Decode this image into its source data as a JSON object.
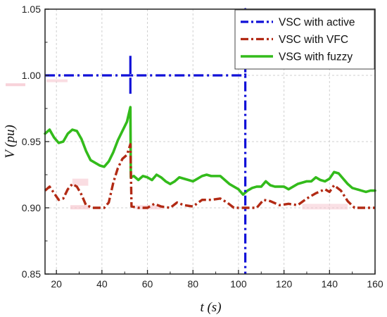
{
  "chart_data": {
    "type": "line",
    "xlabel": "t (s)",
    "ylabel": "V (pu)",
    "xlim": [
      15,
      160
    ],
    "ylim": [
      0.85,
      1.05
    ],
    "grid": true,
    "legend_position": "top-right",
    "x_ticks": [
      20,
      40,
      60,
      80,
      100,
      120,
      140,
      160
    ],
    "x_tick_labels": [
      "20",
      "40",
      "60",
      "80",
      "100",
      "120",
      "140",
      "160"
    ],
    "y_ticks": [
      0.85,
      0.9,
      0.95,
      1.0,
      1.05
    ],
    "y_tick_labels": [
      "0.85",
      "0.90",
      "0.95",
      "1.00",
      "1.05"
    ],
    "colors": {
      "blue": "#1010d8",
      "red": "#b22a14",
      "green": "#33bb1b",
      "pink_band": "#f6c7cf"
    },
    "series": [
      {
        "name": "VSC with active",
        "color": "#1010d8",
        "style": "dash-dot",
        "x": [
          15,
          52.5,
          52.5,
          52.5,
          52.5,
          103,
          103,
          103
        ],
        "y": [
          1.0,
          1.0,
          1.015,
          0.985,
          1.0,
          1.0,
          1.05,
          0.85
        ]
      },
      {
        "name": "VSC with VFC",
        "color": "#b22a14",
        "style": "dash-dot",
        "x": [
          15,
          17,
          19,
          21,
          23,
          25,
          27,
          29,
          31,
          33,
          36,
          39,
          41,
          43,
          45,
          47,
          49,
          51,
          52.5,
          53,
          56,
          60,
          63,
          66,
          70,
          73,
          76,
          80,
          84,
          88,
          92,
          95,
          98,
          101,
          104,
          108,
          111,
          114,
          118,
          122,
          126,
          130,
          134,
          138,
          140,
          142,
          145,
          148,
          151,
          155,
          160
        ],
        "y": [
          0.913,
          0.916,
          0.911,
          0.906,
          0.907,
          0.914,
          0.918,
          0.916,
          0.91,
          0.902,
          0.9,
          0.9,
          0.9,
          0.904,
          0.919,
          0.93,
          0.937,
          0.94,
          0.948,
          0.901,
          0.9,
          0.9,
          0.903,
          0.901,
          0.9,
          0.904,
          0.902,
          0.901,
          0.906,
          0.906,
          0.907,
          0.904,
          0.9,
          0.9,
          0.9,
          0.9,
          0.906,
          0.905,
          0.902,
          0.903,
          0.902,
          0.907,
          0.911,
          0.914,
          0.912,
          0.917,
          0.913,
          0.905,
          0.9,
          0.9,
          0.9
        ]
      },
      {
        "name": "VSG with fuzzy",
        "color": "#33bb1b",
        "style": "solid",
        "x": [
          15,
          17,
          19,
          21,
          23,
          25,
          27,
          29,
          31,
          33,
          35,
          37,
          39,
          41,
          43,
          45,
          47,
          49,
          51,
          52.5,
          52.7,
          54,
          56,
          58,
          60,
          62,
          64,
          66,
          68,
          70,
          72,
          74,
          76,
          78,
          80,
          82,
          84,
          86,
          88,
          90,
          92,
          94,
          96,
          98,
          100,
          102,
          104,
          106,
          108,
          110,
          112,
          114,
          116,
          118,
          120,
          122,
          124,
          126,
          128,
          130,
          132,
          134,
          136,
          138,
          140,
          142,
          144,
          146,
          148,
          150,
          152,
          154,
          156,
          158,
          160
        ],
        "y": [
          0.956,
          0.959,
          0.953,
          0.949,
          0.95,
          0.956,
          0.959,
          0.958,
          0.952,
          0.943,
          0.936,
          0.934,
          0.932,
          0.931,
          0.935,
          0.942,
          0.951,
          0.958,
          0.965,
          0.976,
          0.923,
          0.924,
          0.921,
          0.924,
          0.923,
          0.921,
          0.925,
          0.923,
          0.92,
          0.918,
          0.92,
          0.923,
          0.922,
          0.921,
          0.92,
          0.922,
          0.924,
          0.925,
          0.924,
          0.924,
          0.924,
          0.921,
          0.918,
          0.916,
          0.914,
          0.91,
          0.913,
          0.915,
          0.916,
          0.916,
          0.92,
          0.917,
          0.916,
          0.916,
          0.916,
          0.914,
          0.916,
          0.918,
          0.919,
          0.92,
          0.92,
          0.923,
          0.921,
          0.92,
          0.922,
          0.927,
          0.926,
          0.922,
          0.918,
          0.915,
          0.914,
          0.913,
          0.912,
          0.913,
          0.913
        ]
      }
    ]
  }
}
